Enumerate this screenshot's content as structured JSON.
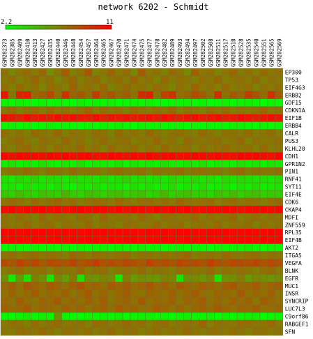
{
  "chart_data": {
    "type": "heatmap",
    "title": "network 6202 - Schmidt",
    "scale": {
      "min": 2.2,
      "max": 11,
      "min_label": "2.2",
      "max_label": "11",
      "low_color": "#00ff00",
      "mid_color": "#808000",
      "high_color": "#ff0000"
    },
    "columns": [
      "GSM282373",
      "GSM282385",
      "GSM282409",
      "GSM282410",
      "GSM282413",
      "GSM282427",
      "GSM282435",
      "GSM282440",
      "GSM282446",
      "GSM282448",
      "GSM282454",
      "GSM282457",
      "GSM282464",
      "GSM282465",
      "GSM282467",
      "GSM282470",
      "GSM282471",
      "GSM282474",
      "GSM282475",
      "GSM282477",
      "GSM282478",
      "GSM282482",
      "GSM282489",
      "GSM282493",
      "GSM282494",
      "GSM282497",
      "GSM282502",
      "GSM282508",
      "GSM282511",
      "GSM282517",
      "GSM282518",
      "GSM282528",
      "GSM282535",
      "GSM282540",
      "GSM282551",
      "GSM282565",
      "GSM282569"
    ],
    "rows": [
      "EP300",
      "TP53",
      "EIF4G3",
      "ERBB2",
      "GDF15",
      "CDKN1A",
      "EIF1B",
      "ERBB4",
      "CALR",
      "PUS3",
      "KLHL20",
      "CDH1",
      "GPR1N2",
      "PIN1",
      "RNF41",
      "SYT11",
      "EIF4E",
      "CDK6",
      "CKAP4",
      "MDFI",
      "ZNF559",
      "RPL35",
      "EIF4B",
      "AKT2",
      "ITGA5",
      "VEGFA",
      "BLNK",
      "EGFR",
      "MUC1",
      "INSR",
      "SYNCRIP",
      "LUC7L3",
      "C9orf86",
      "RABGEF1",
      "SFN"
    ],
    "values": [
      [
        7.1,
        6.4,
        7.0,
        7.3,
        6.8,
        7.5,
        6.2,
        6.9,
        7.8,
        6.6,
        7.2,
        8.0,
        6.5,
        7.0,
        7.6,
        6.8,
        7.3,
        6.4,
        7.9,
        6.9,
        7.1,
        6.6,
        7.4,
        7.0,
        6.3,
        7.7,
        6.9,
        7.2,
        6.5,
        7.0,
        7.5,
        6.8,
        7.1,
        6.7,
        7.4,
        6.9,
        7.2
      ],
      [
        6.8,
        7.3,
        6.5,
        7.0,
        7.6,
        6.9,
        7.2,
        6.4,
        7.0,
        7.5,
        6.7,
        7.1,
        7.4,
        6.6,
        7.0,
        7.3,
        6.8,
        7.6,
        6.9,
        7.1,
        6.5,
        7.4,
        6.8,
        7.2,
        7.0,
        6.6,
        7.3,
        6.9,
        7.5,
        6.7,
        7.0,
        7.2,
        6.8,
        7.4,
        6.6,
        7.1,
        6.9
      ],
      [
        7.2,
        6.6,
        7.4,
        6.9,
        7.1,
        6.5,
        7.3,
        7.0,
        6.7,
        7.6,
        6.9,
        7.2,
        6.8,
        7.5,
        6.6,
        7.0,
        7.4,
        6.9,
        7.1,
        6.7,
        7.3,
        7.0,
        6.5,
        7.2,
        6.8,
        7.6,
        6.9,
        7.1,
        6.7,
        7.4,
        6.8,
        7.0,
        7.3,
        6.6,
        7.1,
        6.9,
        7.2
      ],
      [
        10.2,
        7.0,
        9.8,
        10.0,
        7.4,
        7.8,
        8.6,
        7.2,
        9.4,
        7.6,
        8.0,
        7.3,
        9.0,
        7.5,
        8.2,
        7.4,
        7.8,
        7.1,
        9.6,
        9.8,
        7.0,
        8.8,
        9.2,
        7.3,
        7.6,
        8.4,
        7.9,
        7.2,
        9.4,
        7.1,
        8.0,
        7.6,
        9.0,
        8.2,
        7.4,
        9.2,
        7.8
      ],
      [
        2.6,
        2.4,
        2.8,
        2.5,
        2.3,
        2.7,
        2.4,
        2.6,
        2.5,
        2.3,
        2.8,
        2.4,
        2.6,
        2.5,
        2.7,
        2.3,
        2.4,
        2.6,
        2.5,
        2.8,
        2.4,
        2.3,
        2.6,
        2.5,
        2.7,
        2.4,
        2.6,
        2.3,
        2.5,
        2.7,
        2.4,
        2.6,
        2.8,
        2.5,
        2.3,
        2.6,
        2.4
      ],
      [
        6.9,
        7.4,
        6.6,
        7.1,
        7.3,
        6.8,
        7.5,
        6.9,
        7.2,
        6.7,
        7.0,
        7.6,
        6.8,
        7.3,
        6.9,
        7.1,
        6.6,
        7.4,
        7.0,
        6.8,
        7.2,
        6.9,
        7.5,
        6.7,
        7.1,
        7.0,
        6.6,
        7.3,
        6.9,
        7.4,
        6.7,
        7.2,
        6.8,
        7.0,
        7.5,
        6.9,
        7.1
      ],
      [
        10.4,
        10.2,
        9.8,
        10.6,
        10.0,
        10.3,
        9.9,
        10.5,
        10.1,
        10.4,
        10.2,
        10.0,
        10.6,
        9.8,
        10.3,
        10.1,
        10.5,
        9.9,
        10.2,
        10.4,
        10.0,
        10.6,
        10.1,
        9.8,
        10.3,
        10.5,
        10.0,
        10.2,
        10.4,
        9.9,
        10.1,
        10.6,
        10.3,
        10.0,
        10.2,
        10.4,
        10.1
      ],
      [
        2.5,
        2.7,
        2.4,
        2.6,
        2.3,
        2.5,
        2.8,
        2.4,
        2.6,
        2.5,
        2.3,
        2.7,
        2.4,
        2.6,
        2.5,
        2.8,
        2.4,
        2.3,
        2.6,
        2.5,
        2.7,
        2.4,
        2.6,
        2.5,
        2.3,
        2.7,
        2.4,
        2.6,
        2.5,
        2.4,
        2.8,
        2.6,
        2.5,
        2.3,
        2.7,
        2.4,
        2.6
      ],
      [
        7.3,
        6.8,
        7.1,
        6.6,
        7.4,
        7.0,
        6.9,
        7.5,
        6.7,
        7.2,
        7.0,
        6.8,
        7.3,
        7.1,
        6.6,
        7.4,
        6.9,
        7.2,
        6.8,
        7.5,
        7.0,
        6.7,
        7.1,
        7.3,
        6.9,
        6.8,
        7.4,
        7.0,
        6.6,
        7.2,
        7.1,
        6.9,
        7.4,
        6.8,
        7.0,
        7.3,
        6.7
      ],
      [
        6.7,
        7.1,
        7.4,
        6.9,
        6.6,
        7.3,
        7.0,
        6.8,
        7.5,
        6.9,
        7.2,
        6.6,
        7.0,
        7.4,
        6.8,
        7.1,
        7.3,
        6.7,
        7.0,
        6.9,
        7.5,
        6.8,
        7.2,
        6.6,
        7.4,
        7.0,
        6.9,
        7.1,
        7.3,
        6.8,
        7.0,
        7.4,
        6.6,
        7.2,
        6.9,
        7.0,
        7.3
      ],
      [
        7.0,
        6.6,
        7.2,
        7.4,
        6.8,
        7.1,
        6.7,
        7.3,
        6.9,
        7.0,
        7.5,
        6.8,
        7.2,
        6.6,
        7.4,
        6.9,
        7.0,
        7.3,
        6.7,
        7.1,
        6.8,
        7.5,
        6.9,
        7.0,
        7.2,
        6.6,
        7.3,
        6.8,
        7.1,
        7.4,
        6.9,
        7.0,
        7.2,
        6.7,
        7.4,
        6.8,
        7.0
      ],
      [
        10.8,
        10.5,
        10.9,
        10.6,
        10.7,
        10.4,
        10.8,
        10.6,
        10.9,
        10.5,
        10.7,
        10.8,
        10.4,
        10.6,
        10.9,
        10.7,
        10.5,
        10.8,
        10.6,
        10.9,
        10.4,
        10.7,
        10.8,
        10.5,
        10.6,
        10.9,
        10.7,
        10.4,
        10.8,
        10.6,
        10.5,
        10.9,
        10.7,
        10.8,
        10.6,
        10.5,
        10.9
      ],
      [
        2.8,
        3.2,
        2.6,
        3.0,
        2.7,
        3.4,
        2.9,
        2.5,
        3.1,
        2.8,
        3.3,
        2.6,
        3.0,
        2.9,
        2.7,
        3.2,
        2.5,
        3.1,
        2.8,
        3.0,
        2.6,
        3.3,
        2.9,
        2.7,
        3.1,
        2.8,
        3.4,
        2.6,
        3.0,
        2.9,
        2.7,
        3.2,
        2.8,
        3.0,
        2.6,
        3.1,
        2.9
      ],
      [
        6.8,
        7.2,
        6.9,
        7.4,
        7.0,
        6.7,
        7.3,
        7.1,
        6.8,
        7.5,
        6.9,
        7.0,
        7.2,
        6.6,
        7.1,
        7.4,
        6.9,
        7.0,
        7.3,
        6.7,
        7.2,
        6.9,
        7.0,
        7.4,
        6.8,
        7.1,
        7.3,
        6.9,
        7.0,
        6.6,
        7.2,
        7.4,
        6.8,
        7.1,
        7.0,
        6.9,
        7.3
      ],
      [
        3.4,
        3.0,
        3.6,
        3.2,
        3.8,
        3.1,
        3.5,
        3.3,
        3.0,
        3.7,
        3.2,
        3.4,
        3.1,
        3.6,
        3.0,
        3.3,
        3.8,
        3.2,
        3.5,
        3.1,
        3.4,
        3.0,
        3.6,
        3.3,
        3.2,
        3.7,
        3.1,
        3.4,
        3.0,
        3.5,
        3.2,
        3.6,
        3.3,
        3.1,
        3.4,
        3.0,
        3.5
      ],
      [
        3.0,
        3.2,
        2.7,
        3.4,
        2.9,
        3.1,
        2.8,
        3.3,
        3.0,
        2.6,
        3.2,
        2.9,
        3.5,
        2.8,
        3.1,
        3.0,
        2.7,
        3.3,
        2.9,
        3.2,
        2.8,
        3.0,
        3.4,
        2.7,
        3.1,
        2.9,
        3.3,
        2.8,
        3.0,
        3.2,
        2.6,
        3.1,
        2.9,
        3.3,
        2.8,
        3.0,
        3.2
      ],
      [
        4.2,
        3.8,
        4.6,
        4.0,
        3.6,
        4.4,
        4.1,
        3.9,
        4.8,
        4.0,
        3.7,
        4.5,
        4.2,
        3.8,
        4.3,
        4.6,
        3.9,
        4.1,
        4.4,
        3.7,
        4.0,
        4.7,
        3.8,
        4.2,
        4.5,
        3.9,
        4.1,
        3.6,
        4.3,
        4.0,
        4.6,
        3.8,
        4.2,
        4.4,
        3.9,
        4.1,
        4.0
      ],
      [
        6.9,
        7.3,
        7.0,
        6.7,
        7.4,
        6.8,
        7.1,
        7.5,
        6.9,
        7.2,
        6.6,
        7.0,
        7.3,
        7.1,
        6.8,
        7.4,
        7.0,
        6.7,
        7.2,
        7.3,
        6.9,
        7.1,
        6.8,
        7.5,
        7.0,
        6.9,
        7.2,
        7.4,
        6.7,
        7.0,
        7.3,
        6.8,
        7.1,
        7.0,
        6.6,
        7.2,
        7.4
      ],
      [
        10.6,
        10.9,
        10.5,
        10.8,
        10.7,
        10.9,
        10.6,
        10.8,
        10.5,
        10.7,
        10.9,
        10.6,
        10.8,
        10.7,
        10.5,
        10.9,
        10.6,
        10.8,
        10.7,
        10.5,
        10.9,
        10.6,
        10.8,
        10.7,
        10.9,
        10.5,
        10.6,
        10.8,
        10.7,
        10.9,
        10.6,
        10.5,
        10.8,
        10.7,
        10.9,
        10.6,
        10.8
      ],
      [
        7.1,
        6.8,
        7.3,
        7.0,
        6.6,
        7.4,
        6.9,
        7.2,
        7.0,
        6.8,
        7.3,
        7.1,
        6.7,
        7.5,
        6.9,
        7.0,
        7.2,
        6.8,
        7.4,
        7.0,
        6.6,
        7.3,
        7.1,
        6.9,
        7.0,
        7.4,
        6.8,
        7.2,
        6.9,
        7.1,
        7.5,
        6.7,
        7.0,
        7.3,
        6.8,
        7.2,
        7.0
      ],
      [
        7.2,
        6.9,
        7.0,
        7.4,
        6.8,
        7.1,
        7.3,
        6.7,
        7.2,
        7.0,
        6.9,
        7.5,
        6.8,
        7.1,
        7.0,
        6.6,
        7.3,
        7.2,
        6.9,
        7.0,
        7.4,
        6.8,
        7.1,
        7.3,
        6.7,
        7.0,
        7.2,
        6.9,
        7.4,
        6.8,
        7.1,
        7.0,
        7.3,
        6.6,
        7.2,
        6.9,
        7.1
      ],
      [
        10.9,
        10.8,
        10.7,
        10.9,
        10.8,
        10.9,
        10.7,
        10.8,
        10.9,
        10.8,
        10.7,
        10.9,
        10.8,
        10.9,
        10.7,
        10.8,
        10.9,
        10.8,
        10.7,
        10.9,
        10.8,
        10.9,
        10.7,
        10.8,
        10.9,
        10.8,
        10.7,
        10.9,
        10.8,
        10.9,
        10.7,
        10.8,
        10.9,
        10.8,
        10.7,
        10.9,
        10.8
      ],
      [
        10.7,
        10.9,
        10.8,
        10.6,
        10.9,
        10.7,
        10.8,
        10.9,
        10.6,
        10.8,
        10.7,
        10.9,
        10.8,
        10.6,
        10.9,
        10.7,
        10.8,
        10.9,
        10.6,
        10.8,
        10.7,
        10.9,
        10.8,
        10.6,
        10.9,
        10.7,
        10.8,
        10.9,
        10.6,
        10.8,
        10.7,
        10.9,
        10.8,
        10.6,
        10.9,
        10.7,
        10.8
      ],
      [
        2.4,
        2.6,
        2.5,
        2.3,
        2.7,
        2.4,
        2.6,
        2.5,
        2.8,
        2.3,
        2.6,
        2.4,
        2.5,
        2.7,
        2.3,
        2.6,
        2.4,
        2.5,
        2.8,
        2.4,
        2.6,
        2.3,
        2.5,
        2.7,
        2.4,
        2.6,
        2.5,
        2.3,
        2.7,
        2.4,
        2.6,
        2.5,
        2.8,
        2.4,
        2.3,
        2.6,
        2.5
      ],
      [
        7.0,
        7.3,
        6.8,
        7.1,
        7.4,
        6.9,
        7.2,
        7.0,
        6.7,
        7.5,
        7.1,
        6.8,
        7.3,
        7.0,
        6.9,
        7.2,
        7.4,
        6.6,
        7.1,
        7.0,
        6.8,
        7.3,
        6.9,
        7.2,
        7.5,
        6.7,
        7.0,
        7.1,
        6.8,
        7.4,
        7.0,
        6.9,
        7.2,
        7.3,
        6.8,
        7.1,
        7.0
      ],
      [
        8.4,
        8.0,
        8.8,
        8.2,
        8.6,
        7.9,
        8.5,
        8.3,
        8.1,
        8.7,
        8.0,
        8.4,
        8.9,
        8.2,
        8.5,
        8.1,
        8.6,
        8.3,
        7.9,
        8.8,
        8.2,
        8.4,
        8.0,
        8.7,
        8.3,
        8.5,
        8.1,
        8.9,
        8.2,
        8.0,
        8.6,
        8.4,
        8.3,
        8.7,
        8.1,
        8.5,
        8.2
      ],
      [
        6.8,
        7.1,
        7.4,
        6.9,
        7.0,
        7.3,
        6.7,
        7.2,
        7.0,
        6.9,
        7.5,
        6.8,
        7.1,
        7.3,
        6.6,
        7.0,
        7.2,
        6.9,
        7.4,
        6.8,
        7.1,
        7.0,
        6.7,
        7.3,
        7.2,
        6.9,
        7.0,
        7.4,
        6.8,
        7.1,
        6.9,
        7.3,
        7.0,
        6.7,
        7.2,
        7.4,
        6.9
      ],
      [
        6.2,
        3.0,
        5.8,
        3.2,
        6.6,
        6.0,
        3.1,
        6.4,
        5.6,
        6.8,
        3.3,
        6.1,
        5.9,
        6.5,
        6.3,
        3.0,
        6.7,
        5.7,
        6.2,
        6.0,
        5.8,
        6.6,
        6.4,
        3.2,
        6.1,
        6.3,
        5.9,
        6.5,
        3.1,
        6.0,
        6.2,
        6.8,
        5.7,
        6.4,
        6.1,
        5.9,
        6.3
      ],
      [
        7.4,
        7.8,
        7.2,
        8.0,
        7.6,
        7.3,
        7.9,
        7.5,
        7.1,
        7.7,
        8.1,
        7.4,
        7.6,
        7.2,
        7.9,
        7.5,
        7.8,
        7.3,
        7.6,
        8.0,
        7.4,
        7.7,
        7.2,
        7.9,
        7.5,
        7.3,
        7.8,
        7.6,
        7.1,
        7.7,
        8.0,
        7.4,
        7.5,
        7.9,
        7.2,
        7.6,
        7.8
      ],
      [
        7.2,
        7.6,
        7.0,
        7.4,
        7.8,
        7.1,
        7.5,
        7.3,
        7.7,
        7.0,
        7.4,
        7.9,
        7.2,
        7.6,
        7.1,
        7.5,
        7.8,
        7.3,
        7.0,
        7.6,
        7.4,
        7.2,
        7.7,
        7.1,
        7.5,
        7.8,
        7.3,
        7.0,
        7.6,
        7.4,
        7.2,
        7.9,
        7.1,
        7.5,
        7.3,
        7.7,
        7.0
      ],
      [
        7.5,
        7.1,
        7.8,
        7.3,
        7.0,
        7.6,
        7.4,
        7.9,
        7.2,
        7.5,
        7.1,
        7.7,
        7.3,
        7.8,
        7.0,
        7.4,
        7.6,
        7.2,
        7.9,
        7.1,
        7.5,
        7.3,
        7.7,
        7.0,
        7.6,
        7.4,
        7.8,
        7.2,
        7.5,
        7.1,
        7.7,
        7.3,
        7.6,
        7.0,
        7.8,
        7.4,
        7.2
      ],
      [
        7.7,
        7.3,
        7.5,
        7.9,
        7.2,
        7.6,
        7.4,
        7.1,
        7.8,
        7.3,
        7.6,
        7.0,
        7.5,
        7.7,
        7.2,
        7.9,
        7.4,
        7.6,
        7.1,
        7.3,
        7.8,
        7.5,
        7.2,
        7.6,
        7.0,
        7.4,
        7.7,
        7.3,
        7.9,
        7.5,
        7.1,
        7.6,
        7.4,
        7.8,
        7.2,
        7.3,
        7.5
      ],
      [
        2.5,
        2.3,
        2.6,
        3.0,
        2.4,
        2.7,
        2.5,
        6.0,
        2.6,
        2.4,
        2.3,
        2.7,
        2.5,
        2.6,
        2.4,
        2.8,
        2.3,
        2.5,
        2.6,
        2.7,
        2.4,
        2.5,
        2.3,
        2.6,
        2.8,
        2.4,
        2.5,
        2.7,
        2.3,
        2.6,
        2.4,
        2.5,
        2.7,
        2.6,
        2.3,
        2.4,
        2.5
      ],
      [
        6.9,
        7.2,
        7.0,
        6.7,
        7.3,
        6.8,
        7.1,
        7.4,
        6.9,
        7.0,
        7.2,
        6.6,
        7.3,
        7.1,
        6.8,
        7.0,
        7.4,
        6.9,
        7.2,
        6.7,
        7.1,
        7.3,
        6.8,
        7.0,
        7.2,
        6.9,
        7.5,
        6.7,
        7.1,
        7.0,
        6.8,
        7.3,
        7.2,
        6.9,
        7.0,
        7.4,
        6.8
      ],
      [
        7.0,
        6.8,
        7.3,
        7.1,
        6.9,
        7.4,
        7.0,
        6.7,
        7.2,
        7.1,
        6.9,
        7.3,
        6.8,
        7.0,
        7.4,
        6.9,
        7.1,
        7.2,
        6.7,
        7.0,
        7.3,
        6.8,
        7.1,
        6.9,
        7.4,
        7.0,
        6.8,
        7.2,
        7.1,
        6.9,
        7.3,
        7.0,
        6.7,
        7.2,
        7.1,
        6.9,
        7.0
      ]
    ]
  }
}
